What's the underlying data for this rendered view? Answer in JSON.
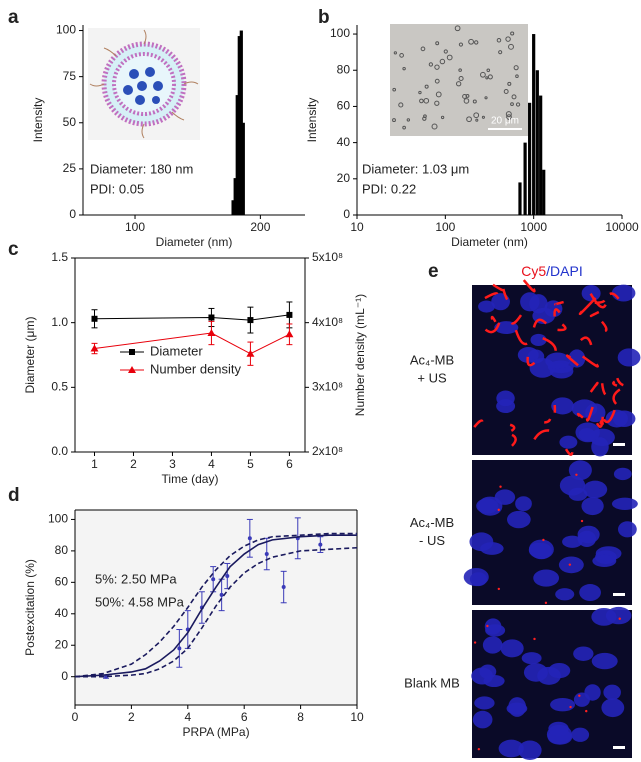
{
  "chart_data": [
    {
      "type": "bar",
      "label": "a",
      "xlabel": "Diameter (nm)",
      "ylabel": "Intensity",
      "xscale": "log",
      "xlim": [
        75,
        256
      ],
      "xticks": [
        100,
        200
      ],
      "ylim": [
        0,
        103
      ],
      "yticks": [
        0,
        25,
        50,
        75,
        100
      ],
      "x": [
        172,
        174,
        176,
        178,
        180,
        182
      ],
      "values": [
        8,
        20,
        65,
        97,
        100,
        50
      ],
      "color": "#000000",
      "annotations": [
        "Diameter: 180 nm",
        "PDI: 0.05"
      ]
    },
    {
      "type": "bar",
      "label": "b",
      "xlabel": "Diameter (nm)",
      "ylabel": "Intensity",
      "xscale": "log",
      "xlim": [
        10,
        10000
      ],
      "xticks": [
        10,
        100,
        1000,
        10000
      ],
      "ylim": [
        0,
        105
      ],
      "yticks": [
        0,
        20,
        40,
        60,
        80,
        100
      ],
      "x": [
        700,
        800,
        900,
        1000,
        1100,
        1200,
        1300
      ],
      "values": [
        18,
        40,
        62,
        100,
        80,
        66,
        25
      ],
      "color": "#000000",
      "annotations": [
        "Diameter: 1.03 μm",
        "PDI: 0.22"
      ],
      "scale_bar": "20 μm"
    },
    {
      "type": "line",
      "label": "c",
      "xlabel": "Time (day)",
      "ylabel": "Diameter (μm)",
      "y2label": "Number density (mL⁻¹)",
      "frame": true,
      "xlim": [
        0.5,
        6.4
      ],
      "xticks": [
        1,
        2,
        3,
        4,
        5,
        6
      ],
      "ylim": [
        0,
        1.5
      ],
      "yticks": [
        {
          "value": 0,
          "label": "0.0"
        },
        0.5,
        {
          "value": 1,
          "label": "1.0"
        },
        1.5
      ],
      "y2lim": [
        200000000,
        500000000
      ],
      "y2ticks": [
        {
          "value": 200000000,
          "label": "2x10⁸"
        },
        {
          "value": 300000000,
          "label": "3x10⁸"
        },
        {
          "value": 400000000,
          "label": "4x10⁸"
        },
        {
          "value": 500000000,
          "label": "5x10⁸"
        }
      ],
      "x": [
        1,
        4,
        5,
        6
      ],
      "series": [
        {
          "name": "Diameter",
          "color": "#000000",
          "marker": "square",
          "values": [
            1.03,
            1.04,
            1.02,
            1.06
          ],
          "errors": [
            0.07,
            0.07,
            0.1,
            0.1
          ]
        },
        {
          "name": "Number density",
          "color": "#e8000b",
          "marker": "triangle",
          "axis": "y2",
          "values": [
            360000000,
            384000000,
            352000000,
            382000000
          ],
          "errors": [
            8000000,
            18000000,
            18000000,
            16000000
          ]
        }
      ]
    },
    {
      "type": "scatter",
      "label": "d",
      "xlabel": "PRPA (MPa)",
      "ylabel": "Postexcitation (%)",
      "frame": true,
      "background": "#f4f4f4",
      "xlim": [
        0,
        10
      ],
      "xticks": [
        0,
        2,
        4,
        6,
        8,
        10
      ],
      "ylim": [
        -18,
        106
      ],
      "yticks": [
        0,
        20,
        40,
        60,
        80,
        100
      ],
      "annotations": [
        "5%: 2.50 MPa",
        "50%: 4.58 MPa"
      ],
      "series": [
        {
          "style": "markers",
          "color": "#3a3ab8",
          "x": [
            1.1,
            3.7,
            4.0,
            4.5,
            4.9,
            5.2,
            5.4,
            6.2,
            6.8,
            7.4,
            7.9,
            8.7
          ],
          "values": [
            0,
            18,
            30,
            44,
            62,
            52,
            64,
            88,
            78,
            57,
            88,
            84
          ],
          "errors": [
            1,
            12,
            12,
            10,
            8,
            10,
            8,
            12,
            10,
            10,
            13,
            5
          ]
        },
        {
          "style": "solid",
          "color": "#1a1a5e",
          "x": [
            0,
            1,
            2,
            2.5,
            3,
            3.5,
            4,
            4.5,
            5,
            5.5,
            6,
            6.5,
            7,
            8,
            9,
            10
          ],
          "values": [
            0,
            1,
            3,
            5,
            10,
            17,
            28,
            43,
            57,
            70,
            78,
            84,
            87,
            89,
            90,
            90
          ]
        },
        {
          "style": "dashed",
          "color": "#1a1a5e",
          "x": [
            0,
            1,
            2,
            2.5,
            3,
            3.5,
            4,
            4.5,
            5,
            5.5,
            6,
            6.5,
            7,
            8,
            9,
            10
          ],
          "values": [
            0,
            2,
            8,
            14,
            22,
            32,
            44,
            57,
            68,
            77,
            83,
            87,
            89,
            90,
            91,
            91
          ]
        },
        {
          "style": "dashed",
          "color": "#1a1a5e",
          "x": [
            0,
            1,
            2,
            2.5,
            3,
            3.5,
            4,
            4.5,
            5,
            5.5,
            6,
            6.5,
            7,
            8,
            9,
            10
          ],
          "values": [
            0,
            0,
            1,
            2,
            5,
            10,
            18,
            31,
            45,
            57,
            66,
            72,
            76,
            80,
            81,
            82
          ]
        }
      ]
    }
  ],
  "figure_e": {
    "label": "e",
    "title": [
      "Cy5",
      "/DAPI"
    ],
    "rows": [
      [
        "Ac₄-MB",
        "+ US"
      ],
      [
        "Ac₄-MB",
        "- US"
      ],
      [
        "Blank MB"
      ]
    ]
  }
}
